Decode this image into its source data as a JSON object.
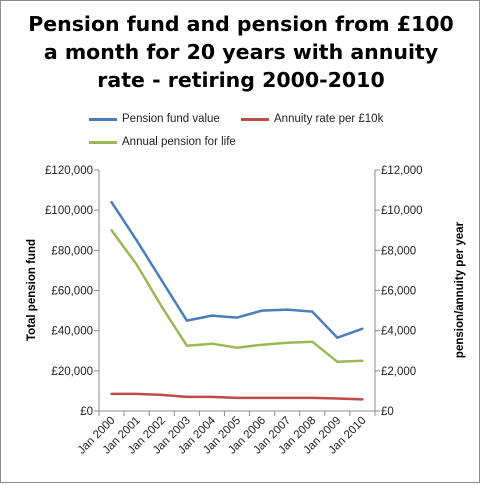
{
  "chart_data": {
    "type": "line",
    "title": "Pension fund and pension from £100 a month for 20 years with annuity rate - retiring 2000-2010",
    "title_lines": [
      "Pension fund and pension from £100",
      "a month for 20 years with annuity",
      "rate - retiring 2000-2010"
    ],
    "ylabel": "Total pension fund",
    "y2label": "pension/annuity per year",
    "categories": [
      "Jan 2000",
      "Jan 2001",
      "Jan 2002",
      "Jan 2003",
      "Jan 2004",
      "Jan 2005",
      "Jan 2006",
      "Jan 2007",
      "Jan 2008",
      "Jan 2009",
      "Jan 2010"
    ],
    "ylim": [
      0,
      120000
    ],
    "y2lim": [
      0,
      12000
    ],
    "yticks": [
      "£0",
      "£20,000",
      "£40,000",
      "£60,000",
      "£80,000",
      "£100,000",
      "£120,000"
    ],
    "y2ticks": [
      "£0",
      "£2,000",
      "£4,000",
      "£6,000",
      "£8,000",
      "£10,000",
      "£12,000"
    ],
    "grid": false,
    "legend_position": "top",
    "series": [
      {
        "name": "Pension fund value",
        "axis": "left",
        "color": "#4a7ebb",
        "values": [
          104000,
          85000,
          65000,
          45000,
          47500,
          46500,
          50000,
          50500,
          49500,
          36500,
          41000
        ]
      },
      {
        "name": "Annuity rate per £10k",
        "axis": "right",
        "color": "#be4b48",
        "values": [
          850,
          850,
          800,
          700,
          700,
          650,
          650,
          650,
          650,
          620,
          580
        ]
      },
      {
        "name": "Annual pension for life",
        "axis": "right",
        "color": "#98b954",
        "values": [
          9000,
          7300,
          5200,
          3250,
          3350,
          3150,
          3300,
          3400,
          3450,
          2450,
          2500
        ]
      }
    ]
  }
}
